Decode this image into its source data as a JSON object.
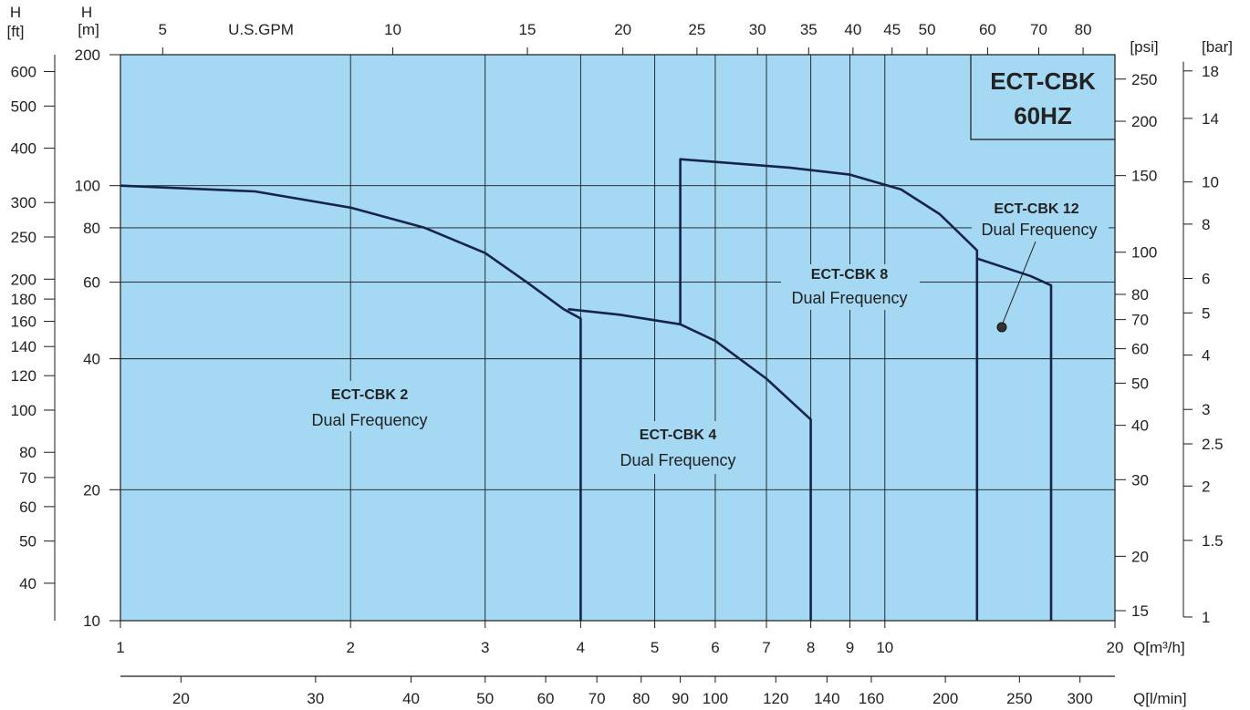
{
  "chart_data": {
    "type": "line",
    "title": "ECT-CBK",
    "subtitle": "60HZ",
    "x_scale": "log",
    "y_scale": "log",
    "xlim": [
      1,
      20
    ],
    "ylim": [
      10,
      200
    ],
    "grid": true,
    "x_bottom": {
      "label": "Q[m³/h]",
      "ticks": [
        1,
        2,
        3,
        4,
        5,
        6,
        7,
        8,
        9,
        10,
        20
      ]
    },
    "x_lmin": {
      "label": "Q[l/min]",
      "ticks": [
        20,
        30,
        40,
        50,
        60,
        70,
        80,
        90,
        100,
        120,
        140,
        160,
        200,
        250,
        300
      ]
    },
    "x_gpm": {
      "label": "U.S.GPM",
      "ticks": [
        5,
        10,
        15,
        20,
        25,
        30,
        35,
        40,
        45,
        50,
        60,
        70,
        80
      ]
    },
    "y_m": {
      "label_top": "H",
      "label_bottom": "[m]",
      "ticks": [
        10,
        20,
        40,
        60,
        80,
        100,
        200
      ]
    },
    "y_ft": {
      "label_top": "H",
      "label_bottom": "[ft]",
      "ticks": [
        40,
        50,
        60,
        70,
        80,
        100,
        120,
        140,
        160,
        180,
        200,
        250,
        300,
        400,
        500,
        600
      ]
    },
    "y_psi": {
      "label": "[psi]",
      "ticks": [
        15,
        20,
        30,
        40,
        50,
        60,
        70,
        80,
        100,
        150,
        200,
        250
      ]
    },
    "y_bar": {
      "label": "[bar]",
      "ticks": [
        "1",
        "1.5",
        "2",
        "2.5",
        "3",
        "4",
        "5",
        "6",
        "8",
        "10",
        "14",
        "18"
      ]
    },
    "series": [
      {
        "name": "ECT-CBK 2",
        "subname": "Dual Frequency",
        "points": [
          [
            1,
            100
          ],
          [
            1.5,
            97
          ],
          [
            2,
            89
          ],
          [
            2.5,
            80
          ],
          [
            3,
            70
          ],
          [
            3.4,
            60
          ],
          [
            3.8,
            52
          ],
          [
            4,
            49.5
          ],
          [
            4,
            10
          ]
        ]
      },
      {
        "name": "ECT-CBK 4",
        "subname": "Dual Frequency",
        "points": [
          [
            3.85,
            52
          ],
          [
            4.5,
            50.5
          ],
          [
            5.4,
            48
          ],
          [
            6,
            44
          ],
          [
            7,
            36
          ],
          [
            8,
            29
          ],
          [
            8,
            10
          ]
        ]
      },
      {
        "name": "ECT-CBK 8",
        "subname": "Dual Frequency",
        "points": [
          [
            5.4,
            48
          ],
          [
            5.4,
            115
          ],
          [
            7.5,
            110
          ],
          [
            9,
            106
          ],
          [
            10.5,
            98
          ],
          [
            11.8,
            86
          ],
          [
            13.2,
            71
          ],
          [
            13.2,
            10
          ]
        ]
      },
      {
        "name": "ECT-CBK 12",
        "subname": "Dual Frequency",
        "points": [
          [
            13.2,
            68
          ],
          [
            15.5,
            62
          ],
          [
            16.5,
            59
          ],
          [
            16.5,
            10
          ]
        ]
      }
    ]
  }
}
